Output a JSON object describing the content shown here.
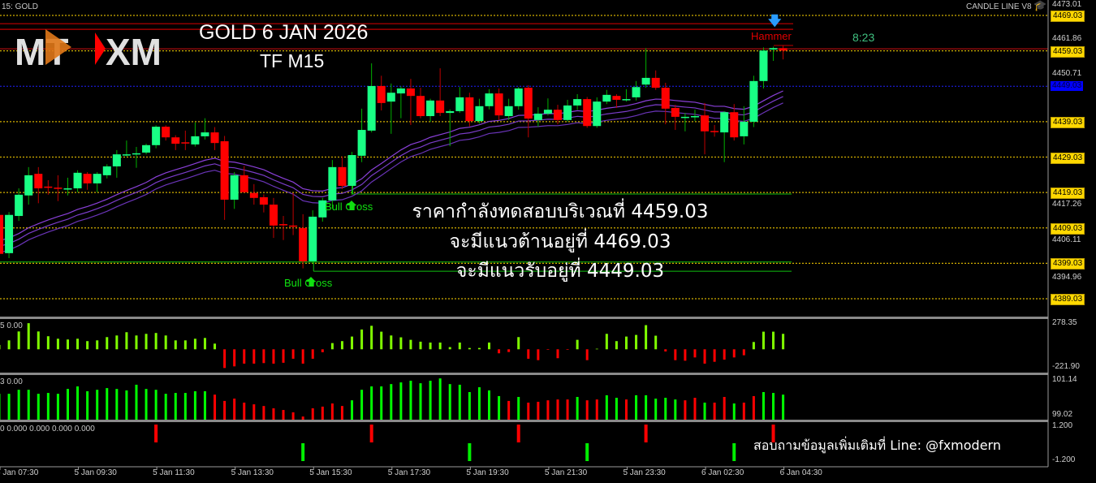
{
  "header": {
    "symbol_label": "15: GOLD",
    "indicator_name": "CANDLE LINE V8",
    "indicator_icon": "graduation-cap-icon",
    "logo_text": "MT XM",
    "title": "GOLD  6 JAN 2026",
    "timeframe": "TF M15",
    "candle_timer": "8:23"
  },
  "annotations": {
    "pattern": "Hammer",
    "bull_cross_1": "Bull Cross",
    "bull_cross_2": "Bull Cross",
    "thai_line_1": "ราคากำลังทดสอบบริเวณที่ 4459.03",
    "thai_line_2": "จะมีแนวต้านอยู่ที่ 4469.03",
    "thai_line_3": "จะมีแนวรับอยู่ที่ 4449.03",
    "contact": "สอบถามข้อมูลเพิ่มเติมที่ Line: @fxmodern"
  },
  "colors": {
    "background": "#000000",
    "bull_candle": "#19ff85",
    "bear_candle": "#ff0000",
    "level_line": "#d4b000",
    "ma_band": "#7a3cc8",
    "osc_up": "#80ff00",
    "vol_up": "#00ff00",
    "down": "#ff0000"
  },
  "price_axis": {
    "labels": [
      {
        "text": "4473.01",
        "price": 4473.01,
        "style": "plain"
      },
      {
        "text": "4469.03",
        "price": 4469.03,
        "style": "box"
      },
      {
        "text": "4461.86",
        "price": 4461.86,
        "style": "plain"
      },
      {
        "text": "4459.03",
        "price": 4459.03,
        "style": "box"
      },
      {
        "text": "4450.71",
        "price": 4450.71,
        "style": "plain"
      },
      {
        "text": "4449.03",
        "price": 4449.03,
        "style": "blue"
      },
      {
        "text": "4439.03",
        "price": 4439.03,
        "style": "box"
      },
      {
        "text": "4429.03",
        "price": 4429.03,
        "style": "box"
      },
      {
        "text": "4419.03",
        "price": 4419.03,
        "style": "box"
      },
      {
        "text": "4417.26",
        "price": 4417.26,
        "style": "plain"
      },
      {
        "text": "4409.03",
        "price": 4409.03,
        "style": "box"
      },
      {
        "text": "4406.11",
        "price": 4406.11,
        "style": "plain"
      },
      {
        "text": "4399.03",
        "price": 4399.03,
        "style": "box"
      },
      {
        "text": "4394.96",
        "price": 4394.96,
        "style": "plain"
      },
      {
        "text": "4389.03",
        "price": 4389.03,
        "style": "box"
      }
    ]
  },
  "time_axis": [
    "5 Jan 07:30",
    "5 Jan 09:30",
    "5 Jan 11:30",
    "5 Jan 13:30",
    "5 Jan 15:30",
    "5 Jan 17:30",
    "5 Jan 19:30",
    "5 Jan 21:30",
    "5 Jan 23:30",
    "6 Jan 02:30",
    "6 Jan 04:30"
  ],
  "chart_data": {
    "type": "candlestick",
    "symbol": "GOLD",
    "timeframe": "M15",
    "ylim": [
      4389.03,
      4469.03
    ],
    "levels": {
      "dotted": [
        4469.03,
        4459.03,
        4439.03,
        4429.03,
        4419.03,
        4409.03,
        4399.03,
        4389.03
      ],
      "resistance_red": [
        4466.7,
        4465.1
      ],
      "current_red": 4459.6,
      "blue_dotted": 4449.03,
      "bull_cross_lines": [
        {
          "bar": 36,
          "price": 4418.6
        },
        {
          "bar": 32,
          "price": 4396.8
        }
      ],
      "green_solid": 4399.4
    },
    "candles_ohlc": [
      [
        4412.7,
        4413.5,
        4401.0,
        4401.7
      ],
      [
        4401.9,
        4413.5,
        4400.5,
        4412.7
      ],
      [
        4412.4,
        4420.2,
        4411.0,
        4418.4
      ],
      [
        4418.2,
        4426.2,
        4415.6,
        4423.9
      ],
      [
        4424.3,
        4426.2,
        4416.0,
        4420.2
      ],
      [
        4420.7,
        4422.5,
        4418.4,
        4420.5
      ],
      [
        4420.4,
        4423.9,
        4416.6,
        4420.2
      ],
      [
        4420.0,
        4423.2,
        4418.2,
        4420.2
      ],
      [
        4420.2,
        4425.3,
        4419.1,
        4424.6
      ],
      [
        4424.3,
        4424.8,
        4419.8,
        4421.6
      ],
      [
        4421.6,
        4424.8,
        4419.1,
        4424.3
      ],
      [
        4423.9,
        4427.0,
        4423.0,
        4426.4
      ],
      [
        4426.4,
        4431.0,
        4423.2,
        4429.8
      ],
      [
        4429.6,
        4433.7,
        4429.2,
        4429.8
      ],
      [
        4429.9,
        4431.9,
        4426.0,
        4430.1
      ],
      [
        4430.3,
        4432.8,
        4429.8,
        4432.4
      ],
      [
        4432.4,
        4438.0,
        4431.5,
        4437.6
      ],
      [
        4437.6,
        4438.0,
        4433.7,
        4434.6
      ],
      [
        4434.6,
        4435.2,
        4431.0,
        4432.8
      ],
      [
        4433.2,
        4436.5,
        4431.0,
        4433.0
      ],
      [
        4432.6,
        4438.8,
        4432.0,
        4434.9
      ],
      [
        4434.9,
        4440.0,
        4434.0,
        4436.0
      ],
      [
        4436.0,
        4437.5,
        4431.0,
        4433.0
      ],
      [
        4433.5,
        4435.0,
        4411.3,
        4417.0
      ],
      [
        4417.0,
        4424.8,
        4414.4,
        4423.9
      ],
      [
        4423.9,
        4426.5,
        4419.0,
        4419.1
      ],
      [
        4418.9,
        4421.4,
        4415.6,
        4417.5
      ],
      [
        4417.7,
        4418.5,
        4413.4,
        4415.6
      ],
      [
        4415.6,
        4417.5,
        4406.2,
        4409.7
      ],
      [
        4410.1,
        4412.4,
        4405.6,
        4409.9
      ],
      [
        4409.7,
        4418.9,
        4407.0,
        4409.5
      ],
      [
        4409.0,
        4412.9,
        4397.6,
        4399.6
      ],
      [
        4399.6,
        4414.0,
        4399.0,
        4412.2
      ],
      [
        4412.0,
        4417.5,
        4410.8,
        4416.8
      ],
      [
        4416.8,
        4428.2,
        4414.5,
        4426.2
      ],
      [
        4426.2,
        4429.2,
        4420.0,
        4420.9
      ],
      [
        4420.9,
        4430.5,
        4418.4,
        4429.6
      ],
      [
        4429.4,
        4442.7,
        4427.6,
        4436.7
      ],
      [
        4436.5,
        4455.5,
        4436.0,
        4449.1
      ],
      [
        4449.1,
        4452.0,
        4442.2,
        4444.3
      ],
      [
        4444.7,
        4449.8,
        4435.6,
        4447.2
      ],
      [
        4447.0,
        4449.0,
        4440.0,
        4448.4
      ],
      [
        4448.4,
        4451.1,
        4438.1,
        4446.3
      ],
      [
        4446.3,
        4448.6,
        4440.0,
        4440.6
      ],
      [
        4440.6,
        4445.5,
        4439.0,
        4445.0
      ],
      [
        4445.0,
        4454.1,
        4440.6,
        4441.5
      ],
      [
        4441.5,
        4442.5,
        4432.1,
        4442.0
      ],
      [
        4442.0,
        4448.8,
        4441.5,
        4445.9
      ],
      [
        4445.9,
        4447.2,
        4437.7,
        4439.2
      ],
      [
        4439.2,
        4445.5,
        4438.5,
        4443.4
      ],
      [
        4443.4,
        4448.2,
        4442.5,
        4447.0
      ],
      [
        4447.0,
        4448.4,
        4439.5,
        4440.8
      ],
      [
        4440.6,
        4445.5,
        4439.5,
        4443.4
      ],
      [
        4443.4,
        4448.8,
        4442.4,
        4448.4
      ],
      [
        4448.6,
        4449.3,
        4434.6,
        4439.9
      ],
      [
        4439.5,
        4443.1,
        4437.6,
        4441.3
      ],
      [
        4441.3,
        4445.6,
        4440.8,
        4442.4
      ],
      [
        4442.4,
        4443.8,
        4438.3,
        4439.5
      ],
      [
        4439.5,
        4445.2,
        4439.0,
        4443.6
      ],
      [
        4443.6,
        4446.8,
        4442.4,
        4445.4
      ],
      [
        4445.4,
        4446.0,
        4437.3,
        4437.8
      ],
      [
        4437.8,
        4445.9,
        4437.3,
        4444.7
      ],
      [
        4444.7,
        4448.0,
        4444.0,
        4446.6
      ],
      [
        4446.3,
        4446.8,
        4442.9,
        4445.2
      ],
      [
        4445.1,
        4448.2,
        4444.7,
        4445.4
      ],
      [
        4445.9,
        4450.5,
        4445.0,
        4448.8
      ],
      [
        4449.5,
        4459.8,
        4448.6,
        4451.4
      ],
      [
        4451.4,
        4453.5,
        4448.0,
        4448.6
      ],
      [
        4448.6,
        4450.0,
        4438.3,
        4442.7
      ],
      [
        4442.9,
        4443.8,
        4436.7,
        4440.4
      ],
      [
        4440.3,
        4441.5,
        4436.3,
        4440.4
      ],
      [
        4440.5,
        4442.4,
        4439.2,
        4440.6
      ],
      [
        4440.8,
        4444.3,
        4429.8,
        4436.3
      ],
      [
        4436.4,
        4438.1,
        4434.8,
        4436.3
      ],
      [
        4436.0,
        4442.0,
        4427.6,
        4441.7
      ],
      [
        4441.7,
        4444.0,
        4433.7,
        4434.6
      ],
      [
        4434.9,
        4443.4,
        4432.6,
        4439.0
      ],
      [
        4439.0,
        4452.0,
        4437.5,
        4450.5
      ],
      [
        4450.5,
        4460.0,
        4448.4,
        4459.1
      ],
      [
        4459.4,
        4460.2,
        4456.2,
        4459.8
      ],
      [
        4459.8,
        4460.5,
        4456.6,
        4459.1
      ]
    ],
    "oscillator": {
      "label": "5 0.00",
      "ylim": [
        -221.9,
        278.35
      ],
      "values": [
        40,
        82,
        164,
        240,
        164,
        120,
        97,
        90,
        97,
        75,
        82,
        112,
        127,
        157,
        127,
        142,
        150,
        127,
        82,
        82,
        97,
        104,
        52,
        -172,
        -157,
        -132,
        -132,
        -127,
        -132,
        -124,
        -87,
        -132,
        -87,
        -27,
        57,
        75,
        117,
        182,
        216,
        162,
        127,
        110,
        87,
        70,
        62,
        62,
        20,
        62,
        12,
        12,
        62,
        -37,
        -25,
        112,
        -87,
        -100,
        -5,
        -82,
        -5,
        87,
        -100,
        5,
        142,
        75,
        117,
        132,
        222,
        125,
        -20,
        -100,
        -105,
        -75,
        -132,
        -115,
        -95,
        -75,
        -55,
        67,
        162,
        162,
        142
      ]
    },
    "volume_strength": {
      "label": "3 0.00",
      "ylim": [
        99.02,
        101.14
      ],
      "values": [
        100.25,
        100.25,
        100.44,
        100.44,
        100.25,
        100.29,
        100.25,
        100.48,
        100.6,
        100.37,
        100.44,
        100.52,
        100.48,
        100.41,
        100.68,
        100.48,
        100.44,
        100.25,
        100.29,
        100.29,
        100.37,
        100.37,
        100.21,
        99.91,
        100.02,
        99.83,
        99.75,
        99.67,
        99.56,
        99.48,
        99.37,
        99.17,
        99.56,
        99.64,
        99.79,
        99.67,
        99.94,
        100.44,
        100.6,
        100.6,
        100.71,
        100.79,
        100.87,
        100.75,
        100.87,
        100.98,
        100.71,
        100.68,
        100.33,
        100.56,
        100.41,
        100.14,
        99.91,
        100.1,
        99.83,
        99.87,
        99.94,
        99.98,
        99.98,
        100.1,
        99.94,
        99.98,
        100.18,
        100.06,
        99.98,
        100.18,
        100.18,
        100.02,
        100.06,
        99.98,
        99.94,
        100.06,
        99.83,
        99.83,
        100.1,
        99.79,
        99.83,
        100.14,
        100.33,
        100.29,
        100.21
      ],
      "direction": "ggggggggggggggggggggggrrrrrrrrrrrrrrggggggggggggggggrgrrrrrgrrggrgggggrrgrrgrrgggg"
    },
    "signals": {
      "label": "0 0.000 0.000 0.000 0.000",
      "ylim": [
        -1.2,
        1.2
      ],
      "sell_bars": [
        16,
        38,
        53,
        66,
        79
      ],
      "buy_bars": [
        31,
        48,
        60,
        75
      ]
    }
  }
}
